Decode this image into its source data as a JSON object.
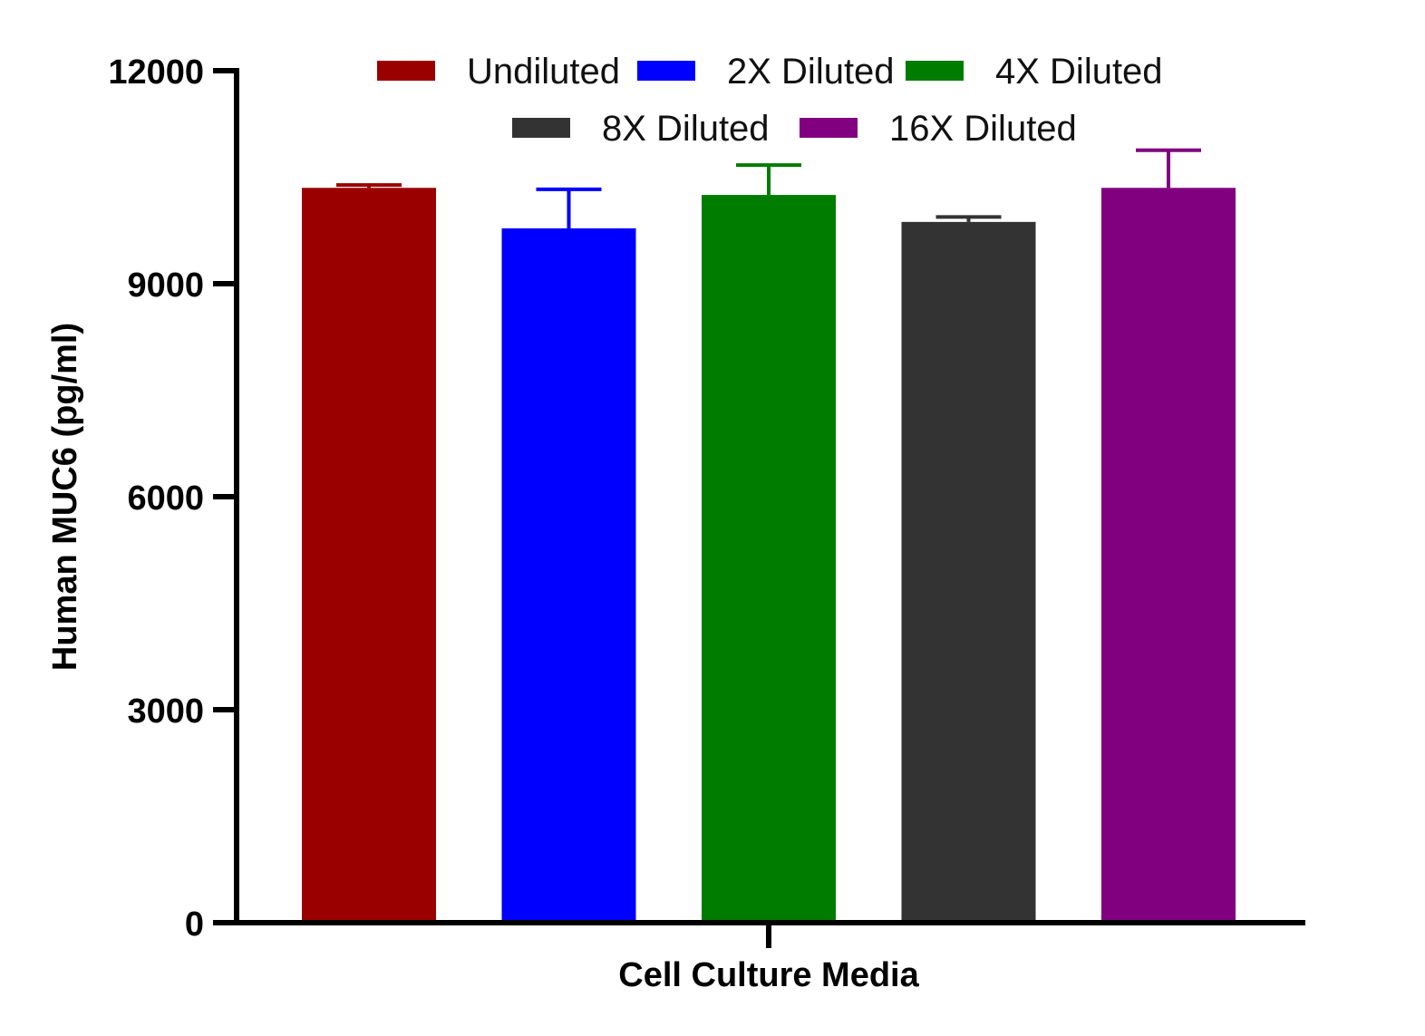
{
  "chart_data": {
    "type": "bar",
    "title": "",
    "xlabel": "Cell Culture Media",
    "ylabel": "Human MUC6 (pg/ml)",
    "ylim": [
      0,
      12000
    ],
    "yticks": [
      0,
      3000,
      6000,
      9000,
      12000
    ],
    "ytick_labels": [
      "0",
      "3000",
      "6000",
      "9000",
      "12000"
    ],
    "grid": false,
    "legend_position": "top",
    "categories": [
      "Cell Culture Media"
    ],
    "series": [
      {
        "name": "Undiluted",
        "values": [
          10350
        ],
        "error": [
          40
        ],
        "color": "#9b0000"
      },
      {
        "name": "2X Diluted",
        "values": [
          9780
        ],
        "error": [
          550
        ],
        "color": "#0000ff"
      },
      {
        "name": "4X Diluted",
        "values": [
          10250
        ],
        "error": [
          420
        ],
        "color": "#007c00"
      },
      {
        "name": "8X Diluted",
        "values": [
          9870
        ],
        "error": [
          70
        ],
        "color": "#333333"
      },
      {
        "name": "16X Diluted",
        "values": [
          10350
        ],
        "error": [
          530
        ],
        "color": "#800080"
      }
    ]
  }
}
